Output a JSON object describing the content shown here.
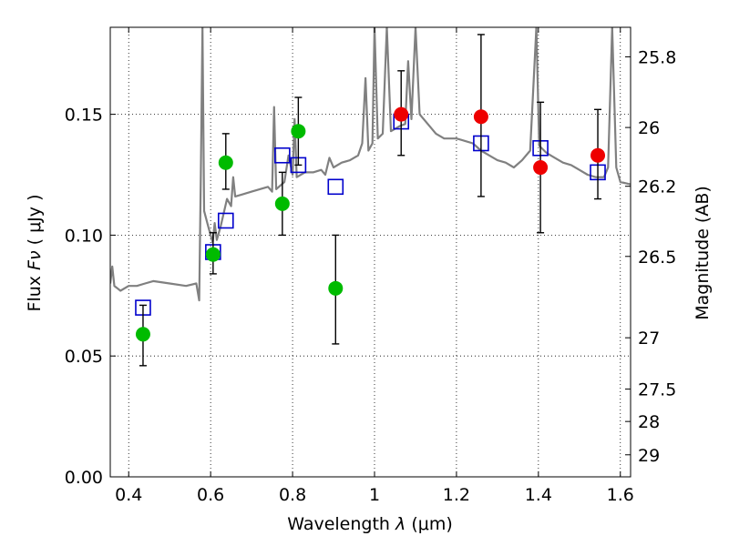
{
  "chart_data": {
    "type": "scatter",
    "xlabel_text": "Wavelength",
    "xlabel_symbol": "λ",
    "xlabel_unit": "(μm)",
    "ylabel_text": "Flux",
    "ylabel_symbol": "Fν",
    "ylabel_unit": "( μJy )",
    "y2label": "Magnitude (AB)",
    "xlim": [
      0.355,
      1.625
    ],
    "ylim": [
      0.0,
      0.186
    ],
    "grid": true,
    "x_ticks": [
      0.4,
      0.6,
      0.8,
      1.0,
      1.2,
      1.4,
      1.6
    ],
    "x_tick_labels": [
      "0.4",
      "0.6",
      "0.8",
      "1",
      "1.2",
      "1.4",
      "1.6"
    ],
    "y_ticks": [
      0.0,
      0.05,
      0.1,
      0.15
    ],
    "y_tick_labels": [
      "0.00",
      "0.05",
      "0.10",
      "0.15"
    ],
    "y2_tick_labels": [
      "25.8",
      "26",
      "26.2",
      "26.5",
      "27",
      "27.5",
      "28",
      "29"
    ],
    "series": [
      {
        "marker": "circle",
        "color": "#00bb00",
        "points": [
          {
            "x": 0.435,
            "y": 0.059,
            "err_lo": 0.046,
            "err_hi": 0.071
          },
          {
            "x": 0.606,
            "y": 0.092,
            "err_lo": 0.084,
            "err_hi": 0.101
          },
          {
            "x": 0.637,
            "y": 0.13,
            "err_lo": 0.119,
            "err_hi": 0.142
          },
          {
            "x": 0.775,
            "y": 0.113,
            "err_lo": 0.1,
            "err_hi": 0.126
          },
          {
            "x": 0.814,
            "y": 0.143,
            "err_lo": 0.129,
            "err_hi": 0.157
          },
          {
            "x": 0.905,
            "y": 0.078,
            "err_lo": 0.055,
            "err_hi": 0.1
          }
        ]
      },
      {
        "marker": "circle",
        "color": "#ee0000",
        "points": [
          {
            "x": 1.065,
            "y": 0.15,
            "err_lo": 0.133,
            "err_hi": 0.168
          },
          {
            "x": 1.26,
            "y": 0.149,
            "err_lo": 0.116,
            "err_hi": 0.183
          },
          {
            "x": 1.405,
            "y": 0.128,
            "err_lo": 0.101,
            "err_hi": 0.155
          },
          {
            "x": 1.545,
            "y": 0.133,
            "err_lo": 0.115,
            "err_hi": 0.152
          }
        ]
      },
      {
        "marker": "square-open",
        "color": "#0000cc",
        "points": [
          {
            "x": 0.435,
            "y": 0.07
          },
          {
            "x": 0.606,
            "y": 0.093
          },
          {
            "x": 0.637,
            "y": 0.106
          },
          {
            "x": 0.775,
            "y": 0.133
          },
          {
            "x": 0.814,
            "y": 0.129
          },
          {
            "x": 0.905,
            "y": 0.12
          },
          {
            "x": 1.065,
            "y": 0.147
          },
          {
            "x": 1.26,
            "y": 0.138
          },
          {
            "x": 1.405,
            "y": 0.136
          },
          {
            "x": 1.545,
            "y": 0.126
          }
        ]
      },
      {
        "marker": "line",
        "color": "#808080",
        "points": [
          {
            "x": 0.355,
            "y": 0.08
          },
          {
            "x": 0.36,
            "y": 0.087
          },
          {
            "x": 0.365,
            "y": 0.079
          },
          {
            "x": 0.38,
            "y": 0.077
          },
          {
            "x": 0.4,
            "y": 0.079
          },
          {
            "x": 0.42,
            "y": 0.079
          },
          {
            "x": 0.44,
            "y": 0.08
          },
          {
            "x": 0.46,
            "y": 0.081
          },
          {
            "x": 0.5,
            "y": 0.08
          },
          {
            "x": 0.54,
            "y": 0.079
          },
          {
            "x": 0.565,
            "y": 0.08
          },
          {
            "x": 0.572,
            "y": 0.073
          },
          {
            "x": 0.576,
            "y": 0.125
          },
          {
            "x": 0.58,
            "y": 0.186
          },
          {
            "x": 0.584,
            "y": 0.11
          },
          {
            "x": 0.595,
            "y": 0.103
          },
          {
            "x": 0.605,
            "y": 0.097
          },
          {
            "x": 0.61,
            "y": 0.105
          },
          {
            "x": 0.615,
            "y": 0.098
          },
          {
            "x": 0.625,
            "y": 0.104
          },
          {
            "x": 0.64,
            "y": 0.115
          },
          {
            "x": 0.65,
            "y": 0.112
          },
          {
            "x": 0.655,
            "y": 0.124
          },
          {
            "x": 0.66,
            "y": 0.116
          },
          {
            "x": 0.68,
            "y": 0.117
          },
          {
            "x": 0.7,
            "y": 0.118
          },
          {
            "x": 0.72,
            "y": 0.119
          },
          {
            "x": 0.74,
            "y": 0.12
          },
          {
            "x": 0.75,
            "y": 0.118
          },
          {
            "x": 0.755,
            "y": 0.153
          },
          {
            "x": 0.76,
            "y": 0.119
          },
          {
            "x": 0.78,
            "y": 0.122
          },
          {
            "x": 0.79,
            "y": 0.133
          },
          {
            "x": 0.8,
            "y": 0.125
          },
          {
            "x": 0.805,
            "y": 0.148
          },
          {
            "x": 0.81,
            "y": 0.124
          },
          {
            "x": 0.83,
            "y": 0.126
          },
          {
            "x": 0.85,
            "y": 0.126
          },
          {
            "x": 0.87,
            "y": 0.127
          },
          {
            "x": 0.88,
            "y": 0.125
          },
          {
            "x": 0.89,
            "y": 0.132
          },
          {
            "x": 0.9,
            "y": 0.128
          },
          {
            "x": 0.92,
            "y": 0.13
          },
          {
            "x": 0.94,
            "y": 0.131
          },
          {
            "x": 0.96,
            "y": 0.133
          },
          {
            "x": 0.97,
            "y": 0.138
          },
          {
            "x": 0.978,
            "y": 0.165
          },
          {
            "x": 0.985,
            "y": 0.135
          },
          {
            "x": 0.995,
            "y": 0.138
          },
          {
            "x": 1.0,
            "y": 0.186
          },
          {
            "x": 1.008,
            "y": 0.14
          },
          {
            "x": 1.02,
            "y": 0.142
          },
          {
            "x": 1.03,
            "y": 0.186
          },
          {
            "x": 1.04,
            "y": 0.143
          },
          {
            "x": 1.06,
            "y": 0.145
          },
          {
            "x": 1.075,
            "y": 0.146
          },
          {
            "x": 1.082,
            "y": 0.172
          },
          {
            "x": 1.09,
            "y": 0.148
          },
          {
            "x": 1.1,
            "y": 0.186
          },
          {
            "x": 1.11,
            "y": 0.15
          },
          {
            "x": 1.13,
            "y": 0.146
          },
          {
            "x": 1.15,
            "y": 0.142
          },
          {
            "x": 1.17,
            "y": 0.14
          },
          {
            "x": 1.2,
            "y": 0.14
          },
          {
            "x": 1.22,
            "y": 0.139
          },
          {
            "x": 1.24,
            "y": 0.138
          },
          {
            "x": 1.26,
            "y": 0.135
          },
          {
            "x": 1.28,
            "y": 0.133
          },
          {
            "x": 1.3,
            "y": 0.131
          },
          {
            "x": 1.32,
            "y": 0.13
          },
          {
            "x": 1.34,
            "y": 0.128
          },
          {
            "x": 1.36,
            "y": 0.131
          },
          {
            "x": 1.38,
            "y": 0.135
          },
          {
            "x": 1.395,
            "y": 0.186
          },
          {
            "x": 1.402,
            "y": 0.137
          },
          {
            "x": 1.42,
            "y": 0.134
          },
          {
            "x": 1.44,
            "y": 0.132
          },
          {
            "x": 1.46,
            "y": 0.13
          },
          {
            "x": 1.48,
            "y": 0.129
          },
          {
            "x": 1.5,
            "y": 0.127
          },
          {
            "x": 1.52,
            "y": 0.125
          },
          {
            "x": 1.54,
            "y": 0.124
          },
          {
            "x": 1.56,
            "y": 0.124
          },
          {
            "x": 1.57,
            "y": 0.128
          },
          {
            "x": 1.58,
            "y": 0.186
          },
          {
            "x": 1.59,
            "y": 0.128
          },
          {
            "x": 1.6,
            "y": 0.122
          },
          {
            "x": 1.625,
            "y": 0.121
          }
        ]
      }
    ]
  }
}
